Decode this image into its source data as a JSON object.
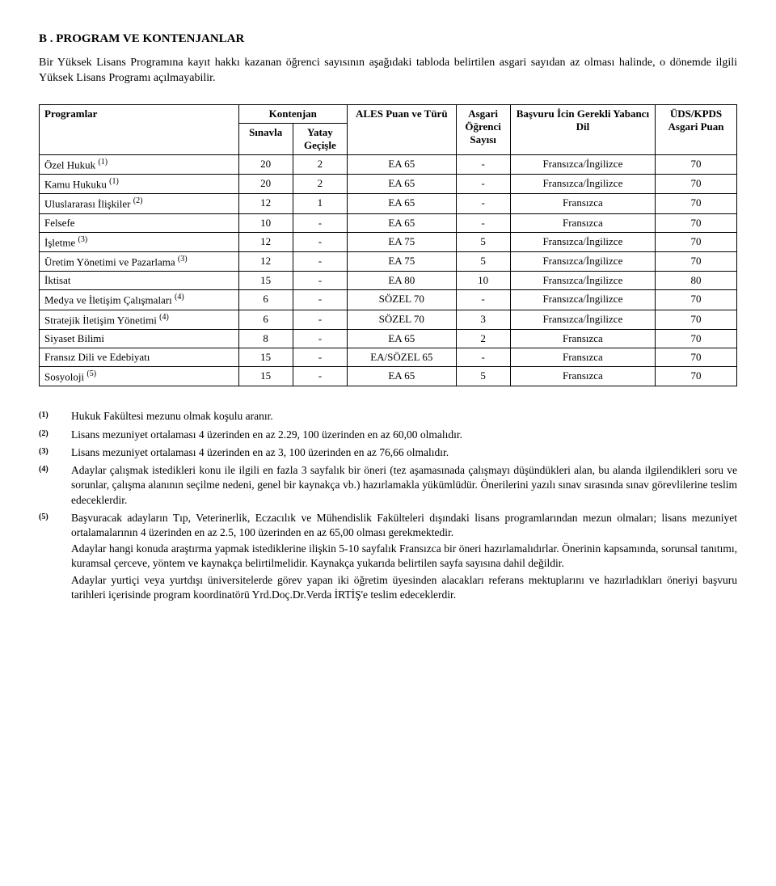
{
  "heading": "B . PROGRAM VE KONTENJANLAR",
  "intro": "Bir Yüksek Lisans Programına kayıt hakkı kazanan öğrenci sayısının aşağıdaki  tabloda belirtilen asgari sayıdan az olması halinde, o dönemde ilgili Yüksek Lisans Programı açılmayabilir.",
  "table": {
    "headers": {
      "programlar": "Programlar",
      "kontenjan": "Kontenjan",
      "sinavla": "Sınavla",
      "yatay": "Yatay Geçişle",
      "ales": "ALES Puan ve Türü",
      "asgari": "Asgari Öğrenci Sayısı",
      "basvuru": "Başvuru İcin Gerekli Yabancı Dil",
      "uds": "ÜDS/KPDS Asgari Puan"
    },
    "rows": [
      {
        "prog": "Özel Hukuk ",
        "sup": "(1)",
        "sin": "20",
        "yat": "2",
        "ales": "EA 65",
        "asg": "-",
        "bas": "Fransızca/İngilizce",
        "uds": "70"
      },
      {
        "prog": "Kamu Hukuku ",
        "sup": "(1)",
        "sin": "20",
        "yat": "2",
        "ales": "EA 65",
        "asg": "-",
        "bas": "Fransızca/İngilizce",
        "uds": "70"
      },
      {
        "prog": "Uluslararası İlişkiler ",
        "sup": "(2)",
        "sin": "12",
        "yat": "1",
        "ales": "EA 65",
        "asg": "-",
        "bas": "Fransızca",
        "uds": "70"
      },
      {
        "prog": "Felsefe",
        "sup": "",
        "sin": "10",
        "yat": "-",
        "ales": "EA 65",
        "asg": "-",
        "bas": "Fransızca",
        "uds": "70"
      },
      {
        "prog": "İşletme ",
        "sup": "(3)",
        "sin": "12",
        "yat": "-",
        "ales": "EA 75",
        "asg": "5",
        "bas": "Fransızca/İngilizce",
        "uds": "70"
      },
      {
        "prog": "Üretim Yönetimi ve Pazarlama ",
        "sup": "(3)",
        "sin": "12",
        "yat": "-",
        "ales": "EA 75",
        "asg": "5",
        "bas": "Fransızca/İngilizce",
        "uds": "70"
      },
      {
        "prog": "İktisat",
        "sup": "",
        "sin": "15",
        "yat": "-",
        "ales": "EA 80",
        "asg": "10",
        "bas": "Fransızca/İngilizce",
        "uds": "80"
      },
      {
        "prog": "Medya ve İletişim Çalışmaları ",
        "sup": "(4)",
        "sin": "6",
        "yat": "-",
        "ales": "SÖZEL 70",
        "asg": "-",
        "bas": "Fransızca/İngilizce",
        "uds": "70"
      },
      {
        "prog": "Stratejik İletişim Yönetimi ",
        "sup": "(4)",
        "sin": "6",
        "yat": "-",
        "ales": "SÖZEL 70",
        "asg": "3",
        "bas": "Fransızca/İngilizce",
        "uds": "70"
      },
      {
        "prog": "Siyaset Bilimi",
        "sup": "",
        "sin": "8",
        "yat": "-",
        "ales": "EA 65",
        "asg": "2",
        "bas": "Fransızca",
        "uds": "70"
      },
      {
        "prog": "Fransız Dili ve Edebiyatı",
        "sup": "",
        "sin": "15",
        "yat": "-",
        "ales": "EA/SÖZEL 65",
        "asg": "-",
        "bas": "Fransızca",
        "uds": "70"
      },
      {
        "prog": "Sosyoloji ",
        "sup": "(5)",
        "sin": "15",
        "yat": "-",
        "ales": "EA 65",
        "asg": "5",
        "bas": "Fransızca",
        "uds": "70"
      }
    ]
  },
  "notes": [
    {
      "key": "(1)",
      "paras": [
        "Hukuk Fakültesi  mezunu olmak koşulu aranır."
      ]
    },
    {
      "key": "(2)",
      "paras": [
        "Lisans  mezuniyet ortalaması 4 üzerinden en az  2.29,   100 üzerinden en az  60,00 olmalıdır."
      ]
    },
    {
      "key": "(3)",
      "paras": [
        "Lisans  mezuniyet ortalaması 4 üzerinden en az  3, 100 üzerinden en az 76,66 olmalıdır."
      ]
    },
    {
      "key": "(4)",
      "paras": [
        "Adaylar çalışmak istedikleri konu ile ilgili en fazla 3 sayfalık bir öneri (tez aşamasınada çalışmayı düşündükleri alan, bu alanda ilgilendikleri soru ve sorunlar, çalışma alanının seçilme nedeni, genel  bir kaynakça vb.) hazırlamakla yükümlüdür. Önerilerini yazılı sınav sırasında sınav görevlilerine teslim edeceklerdir."
      ]
    },
    {
      "key": "(5)",
      "paras": [
        "Başvuracak adayların  Tıp, Veterinerlik, Eczacılık ve Mühendislik Fakülteleri dışındaki lisans programlarından mezun olmaları;  lisans  mezuniyet ortalamalarının 4 üzerinden en az  2.5,  100 üzerinden en az  65,00 olması gerekmektedir.",
        "Adaylar hangi konuda araştırma yapmak istediklerine ilişkin 5-10 sayfalık Fransızca bir öneri hazırlamalıdırlar. Önerinin kapsamında, sorunsal tanıtımı, kuramsal çerceve, yöntem ve kaynakça belirtilmelidir. Kaynakça yukarıda belirtilen sayfa sayısına dahil değildir.",
        "Adaylar yurtiçi veya yurtdışı üniversitelerde görev yapan iki öğretim üyesinden alacakları referans mektuplarını ve hazırladıkları öneriyi başvuru tarihleri içerisinde program koordinatörü Yrd.Doç.Dr.Verda İRTİŞ'e teslim edeceklerdir."
      ]
    }
  ]
}
